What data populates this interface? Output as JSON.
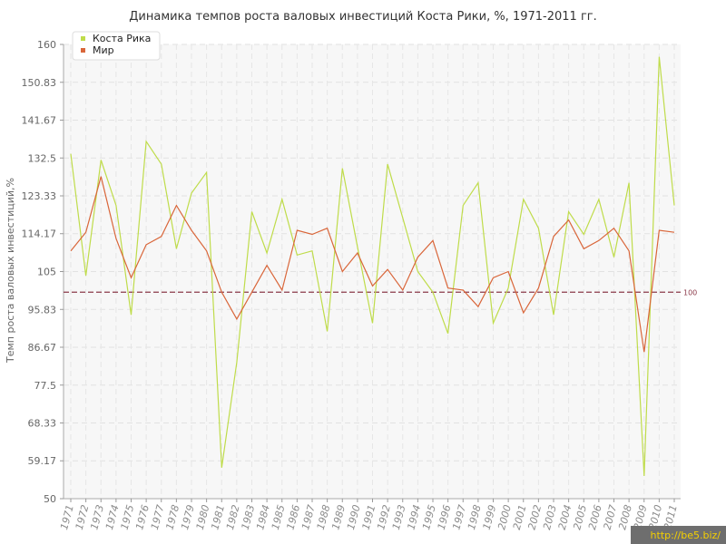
{
  "chart_data": {
    "type": "line",
    "title": "Динамика темпов роста валовых инвестиций Коста Рики, %, 1971-2011 гг.",
    "xlabel": "",
    "ylabel": "Темп роста валовых инвестиций,%",
    "ylim": [
      50,
      160
    ],
    "yticks": [
      "50",
      "59.17",
      "68.33",
      "77.5",
      "86.67",
      "95.83",
      "105",
      "114.17",
      "123.33",
      "132.5",
      "141.67",
      "150.83",
      "160"
    ],
    "ytick_values": [
      50,
      59.17,
      68.33,
      77.5,
      86.67,
      95.83,
      105,
      114.17,
      123.33,
      132.5,
      141.67,
      150.83,
      160
    ],
    "categories": [
      "1971",
      "1972",
      "1973",
      "1974",
      "1975",
      "1976",
      "1977",
      "1978",
      "1979",
      "1980",
      "1981",
      "1982",
      "1983",
      "1984",
      "1985",
      "1986",
      "1987",
      "1988",
      "1989",
      "1990",
      "1991",
      "1992",
      "1993",
      "1994",
      "1995",
      "1996",
      "1997",
      "1998",
      "1999",
      "2000",
      "2001",
      "2002",
      "2003",
      "2004",
      "2005",
      "2006",
      "2007",
      "2008",
      "2009",
      "2010",
      "2011"
    ],
    "series": [
      {
        "name": "Коста Рика",
        "color": "#bfdc4a",
        "values": [
          133.5,
          104,
          132,
          121,
          94.5,
          136.5,
          131,
          110.5,
          124,
          129,
          57.5,
          83,
          119.5,
          109.5,
          122.5,
          109,
          110,
          90.5,
          130,
          111,
          92.5,
          131,
          118,
          105,
          100,
          90,
          121,
          126.5,
          92.5,
          101,
          122.5,
          115.5,
          94.5,
          119.5,
          114,
          122.5,
          108.5,
          126.5,
          55.5,
          157,
          121
        ]
      },
      {
        "name": "Мир",
        "color": "#d9663a",
        "values": [
          110,
          114.5,
          128,
          113,
          103.5,
          111.5,
          113.5,
          121,
          115,
          110,
          100,
          93.5,
          100,
          106.5,
          100.5,
          115,
          114,
          115.5,
          105,
          109.5,
          101.5,
          105.5,
          100.5,
          108.5,
          112.5,
          101,
          100.5,
          96.5,
          103.5,
          105,
          95,
          101,
          113.5,
          117.5,
          110.5,
          112.5,
          115.5,
          110,
          85.5,
          115,
          114.5
        ]
      }
    ],
    "reference_line": {
      "value": 100,
      "label": "100",
      "color": "#8b3a4a"
    },
    "grid": true,
    "legend_position": "top-left"
  },
  "watermark": {
    "text": "http://be5.biz/"
  }
}
